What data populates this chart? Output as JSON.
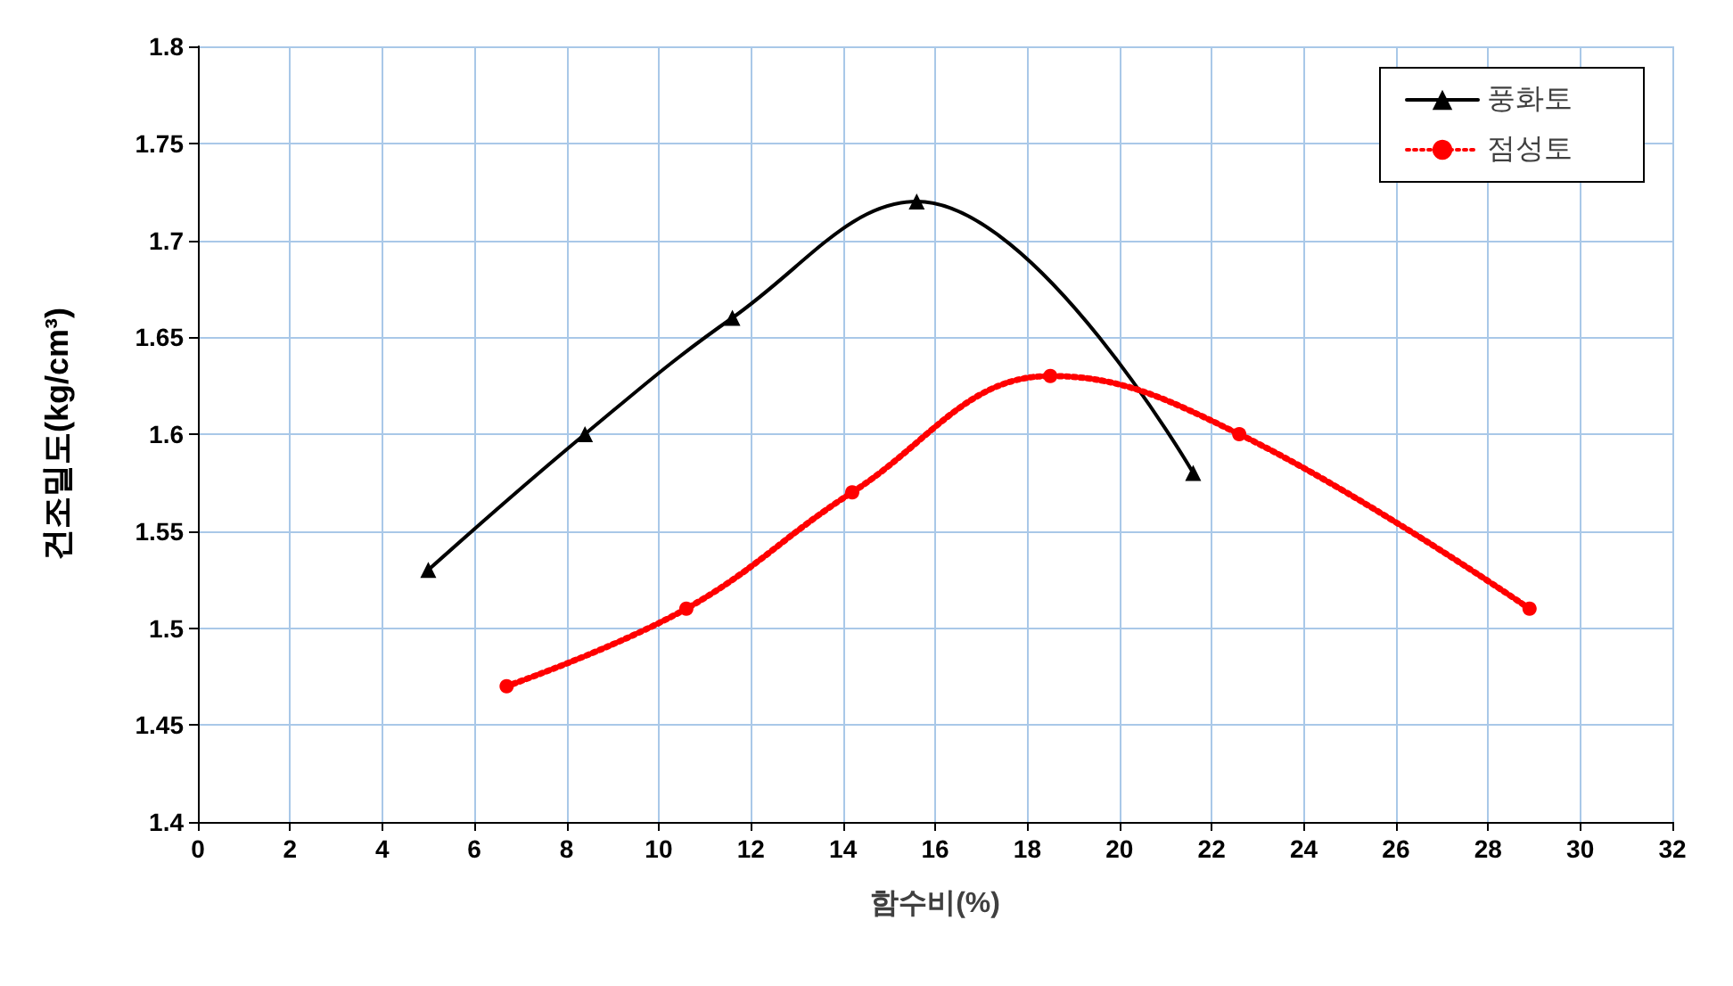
{
  "chart_data": {
    "type": "line",
    "xlabel": "함수비(%)",
    "ylabel": "건조밀도(kg/cm³)",
    "xlim": [
      0,
      32
    ],
    "xticks": [
      0,
      2,
      4,
      6,
      8,
      10,
      12,
      14,
      16,
      18,
      20,
      22,
      24,
      26,
      28,
      30,
      32
    ],
    "ylim": [
      1.4,
      1.8
    ],
    "yticks": [
      1.4,
      1.45,
      1.5,
      1.55,
      1.6,
      1.65,
      1.7,
      1.75,
      1.8
    ],
    "grid": true,
    "legend": "top right",
    "series": [
      {
        "name": "풍화토",
        "color": "#000000",
        "marker": "triangle",
        "line_style": "solid",
        "x": [
          5.0,
          8.4,
          11.6,
          15.6,
          21.6
        ],
        "values": [
          1.53,
          1.6,
          1.66,
          1.72,
          1.58
        ]
      },
      {
        "name": "점성토",
        "color": "#ff0000",
        "marker": "circle",
        "line_style": "dotted",
        "x": [
          6.7,
          10.6,
          14.2,
          18.5,
          22.6,
          28.9
        ],
        "values": [
          1.47,
          1.51,
          1.57,
          1.63,
          1.6,
          1.51
        ]
      }
    ]
  }
}
